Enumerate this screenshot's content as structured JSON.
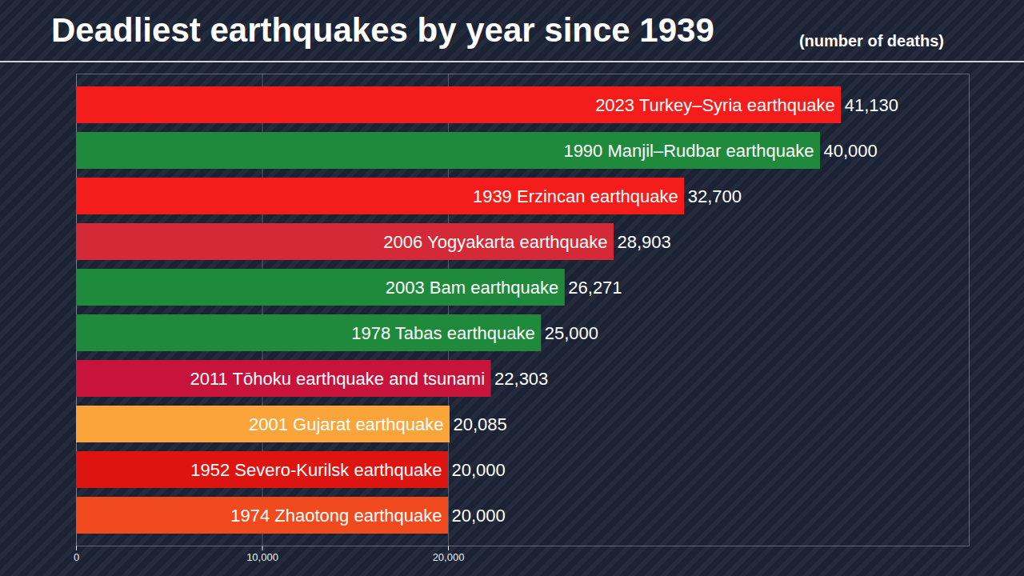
{
  "chart_data": {
    "type": "bar",
    "title": "Deadliest earthquakes by year since 1939",
    "subtitle": "(number of deaths)",
    "orientation": "horizontal",
    "categories": [
      "2023 Turkey–Syria earthquake",
      "1990 Manjil–Rudbar earthquake",
      "1939 Erzincan earthquake",
      "2006 Yogyakarta earthquake",
      "2003 Bam earthquake",
      "1978 Tabas earthquake",
      "2011 Tōhoku earthquake and tsunami",
      "2001 Gujarat earthquake",
      "1952 Severo-Kurilsk earthquake",
      "1974 Zhaotong earthquake"
    ],
    "values": [
      41130,
      40000,
      32700,
      28903,
      26271,
      25000,
      22303,
      20085,
      20000,
      20000
    ],
    "value_labels": [
      "41,130",
      "40,000",
      "32,700",
      "28,903",
      "26,271",
      "25,000",
      "22,303",
      "20,085",
      "20,000",
      "20,000"
    ],
    "colors": [
      "#f51c1c",
      "#1f8a3c",
      "#f51c1c",
      "#d42a38",
      "#1f8a3c",
      "#1f8a3c",
      "#c8143c",
      "#fba43a",
      "#de1410",
      "#f04a1e"
    ],
    "xlim": [
      0,
      48000
    ],
    "xticks": [
      0,
      {
        "value": 10000,
        "label": "10,000"
      },
      {
        "value": 20000,
        "label": "20,000"
      }
    ],
    "grid": true,
    "data_labels": true,
    "tick_labels": "x"
  }
}
